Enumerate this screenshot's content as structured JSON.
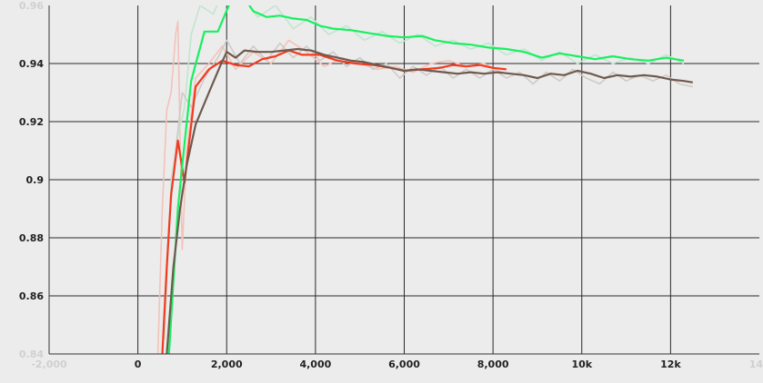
{
  "chart_data": {
    "type": "line",
    "xlim": [
      -2000,
      14000
    ],
    "ylim": [
      0.84,
      0.96
    ],
    "grid": true,
    "x_ticks": [
      {
        "value": -2000,
        "label": "-2,000",
        "faded": true
      },
      {
        "value": 0,
        "label": "0"
      },
      {
        "value": 2000,
        "label": "2,000"
      },
      {
        "value": 4000,
        "label": "4,000"
      },
      {
        "value": 6000,
        "label": "6,000"
      },
      {
        "value": 8000,
        "label": "8,000"
      },
      {
        "value": 10000,
        "label": "10k"
      },
      {
        "value": 12000,
        "label": "12k"
      },
      {
        "value": 14000,
        "label": "14k",
        "faded": true
      }
    ],
    "y_ticks": [
      {
        "value": 0.84,
        "label": "0.84",
        "faded": true
      },
      {
        "value": 0.86,
        "label": "0.86"
      },
      {
        "value": 0.88,
        "label": "0.88"
      },
      {
        "value": 0.9,
        "label": "0.9"
      },
      {
        "value": 0.92,
        "label": "0.92"
      },
      {
        "value": 0.94,
        "label": "0.94"
      },
      {
        "value": 0.96,
        "label": "0.96",
        "faded": true
      }
    ],
    "series": [
      {
        "color": "#f23a1f",
        "raw_color": "#f3c2b9",
        "smoothed": [
          [
            550,
            0.84
          ],
          [
            650,
            0.87
          ],
          [
            750,
            0.895
          ],
          [
            900,
            0.9135
          ],
          [
            1050,
            0.899
          ],
          [
            1300,
            0.932
          ],
          [
            1600,
            0.938
          ],
          [
            1900,
            0.941
          ],
          [
            2200,
            0.9395
          ],
          [
            2500,
            0.939
          ],
          [
            2800,
            0.9415
          ],
          [
            3100,
            0.9425
          ],
          [
            3400,
            0.9445
          ],
          [
            3700,
            0.943
          ],
          [
            4100,
            0.943
          ],
          [
            4500,
            0.941
          ],
          [
            4900,
            0.94
          ],
          [
            5300,
            0.9395
          ],
          [
            5700,
            0.9385
          ],
          [
            6000,
            0.9375
          ],
          [
            6400,
            0.938
          ],
          [
            6800,
            0.9385
          ],
          [
            7100,
            0.9395
          ],
          [
            7400,
            0.939
          ],
          [
            7700,
            0.9395
          ],
          [
            8000,
            0.9385
          ],
          [
            8300,
            0.938
          ]
        ],
        "raw": [
          [
            450,
            0.84
          ],
          [
            550,
            0.89
          ],
          [
            650,
            0.924
          ],
          [
            750,
            0.93
          ],
          [
            850,
            0.95
          ],
          [
            900,
            0.9545
          ],
          [
            1000,
            0.876
          ],
          [
            1100,
            0.91
          ],
          [
            1300,
            0.935
          ],
          [
            1600,
            0.94
          ],
          [
            1900,
            0.946
          ],
          [
            2200,
            0.938
          ],
          [
            2600,
            0.944
          ],
          [
            3000,
            0.94
          ],
          [
            3400,
            0.948
          ],
          [
            3800,
            0.944
          ],
          [
            4200,
            0.939
          ],
          [
            4600,
            0.942
          ],
          [
            5000,
            0.94
          ],
          [
            5400,
            0.938
          ],
          [
            5800,
            0.939
          ],
          [
            6200,
            0.937
          ],
          [
            6600,
            0.94
          ],
          [
            7000,
            0.941
          ],
          [
            7400,
            0.939
          ],
          [
            7800,
            0.94
          ],
          [
            8200,
            0.937
          ]
        ]
      },
      {
        "color": "#17f060",
        "raw_color": "#c2e5cf",
        "smoothed": [
          [
            700,
            0.84
          ],
          [
            800,
            0.865
          ],
          [
            900,
            0.89
          ],
          [
            1000,
            0.905
          ],
          [
            1200,
            0.934
          ],
          [
            1500,
            0.951
          ],
          [
            1800,
            0.951
          ],
          [
            2050,
            0.96
          ],
          [
            2300,
            0.965
          ],
          [
            2600,
            0.958
          ],
          [
            2900,
            0.956
          ],
          [
            3200,
            0.9565
          ],
          [
            3500,
            0.9555
          ],
          [
            3800,
            0.955
          ],
          [
            4100,
            0.953
          ],
          [
            4400,
            0.952
          ],
          [
            4800,
            0.9515
          ],
          [
            5200,
            0.9505
          ],
          [
            5600,
            0.9495
          ],
          [
            6000,
            0.949
          ],
          [
            6400,
            0.9495
          ],
          [
            6700,
            0.948
          ],
          [
            7100,
            0.947
          ],
          [
            7500,
            0.9465
          ],
          [
            7900,
            0.9455
          ],
          [
            8300,
            0.945
          ],
          [
            8700,
            0.944
          ],
          [
            9100,
            0.942
          ],
          [
            9500,
            0.9435
          ],
          [
            9900,
            0.9425
          ],
          [
            10300,
            0.9415
          ],
          [
            10700,
            0.9425
          ],
          [
            11100,
            0.9415
          ],
          [
            11500,
            0.941
          ],
          [
            11900,
            0.942
          ],
          [
            12100,
            0.9415
          ],
          [
            12300,
            0.941
          ]
        ],
        "raw": [
          [
            600,
            0.845
          ],
          [
            750,
            0.9
          ],
          [
            900,
            0.915
          ],
          [
            1050,
            0.925
          ],
          [
            1200,
            0.95
          ],
          [
            1400,
            0.96
          ],
          [
            1700,
            0.957
          ],
          [
            2000,
            0.968
          ],
          [
            2300,
            0.964
          ],
          [
            2700,
            0.956
          ],
          [
            3100,
            0.96
          ],
          [
            3500,
            0.952
          ],
          [
            3900,
            0.956
          ],
          [
            4300,
            0.95
          ],
          [
            4700,
            0.953
          ],
          [
            5100,
            0.948
          ],
          [
            5500,
            0.951
          ],
          [
            5900,
            0.947
          ],
          [
            6300,
            0.95
          ],
          [
            6700,
            0.946
          ],
          [
            7100,
            0.948
          ],
          [
            7500,
            0.945
          ],
          [
            7900,
            0.947
          ],
          [
            8300,
            0.943
          ],
          [
            8700,
            0.945
          ],
          [
            9100,
            0.941
          ],
          [
            9500,
            0.944
          ],
          [
            9900,
            0.94
          ],
          [
            10300,
            0.943
          ],
          [
            10700,
            0.94
          ],
          [
            11100,
            0.942
          ],
          [
            11500,
            0.94
          ],
          [
            11900,
            0.943
          ],
          [
            12300,
            0.94
          ]
        ]
      },
      {
        "color": "#6e5a4e",
        "raw_color": "#cfcac6",
        "smoothed": [
          [
            650,
            0.84
          ],
          [
            800,
            0.87
          ],
          [
            950,
            0.89
          ],
          [
            1100,
            0.905
          ],
          [
            1300,
            0.919
          ],
          [
            1600,
            0.93
          ],
          [
            1850,
            0.939
          ],
          [
            2000,
            0.944
          ],
          [
            2200,
            0.942
          ],
          [
            2400,
            0.9445
          ],
          [
            2700,
            0.944
          ],
          [
            3000,
            0.944
          ],
          [
            3300,
            0.9445
          ],
          [
            3600,
            0.945
          ],
          [
            3900,
            0.9445
          ],
          [
            4200,
            0.943
          ],
          [
            4500,
            0.942
          ],
          [
            4800,
            0.941
          ],
          [
            5100,
            0.9405
          ],
          [
            5400,
            0.9395
          ],
          [
            5700,
            0.9385
          ],
          [
            6000,
            0.9375
          ],
          [
            6300,
            0.938
          ],
          [
            6600,
            0.9375
          ],
          [
            6900,
            0.937
          ],
          [
            7200,
            0.9365
          ],
          [
            7500,
            0.937
          ],
          [
            7800,
            0.9365
          ],
          [
            8100,
            0.937
          ],
          [
            8400,
            0.9365
          ],
          [
            8700,
            0.936
          ],
          [
            9000,
            0.935
          ],
          [
            9300,
            0.9365
          ],
          [
            9600,
            0.936
          ],
          [
            9900,
            0.9375
          ],
          [
            10200,
            0.9365
          ],
          [
            10500,
            0.935
          ],
          [
            10800,
            0.936
          ],
          [
            11100,
            0.9355
          ],
          [
            11400,
            0.936
          ],
          [
            11700,
            0.9355
          ],
          [
            12000,
            0.9345
          ],
          [
            12300,
            0.934
          ],
          [
            12500,
            0.9335
          ]
        ],
        "raw": [
          [
            550,
            0.84
          ],
          [
            700,
            0.885
          ],
          [
            850,
            0.91
          ],
          [
            1000,
            0.93
          ],
          [
            1200,
            0.925
          ],
          [
            1500,
            0.935
          ],
          [
            1800,
            0.942
          ],
          [
            2000,
            0.948
          ],
          [
            2300,
            0.94
          ],
          [
            2600,
            0.946
          ],
          [
            2900,
            0.941
          ],
          [
            3200,
            0.947
          ],
          [
            3500,
            0.942
          ],
          [
            3800,
            0.946
          ],
          [
            4100,
            0.941
          ],
          [
            4400,
            0.944
          ],
          [
            4700,
            0.939
          ],
          [
            5000,
            0.942
          ],
          [
            5300,
            0.938
          ],
          [
            5600,
            0.94
          ],
          [
            5900,
            0.935
          ],
          [
            6200,
            0.939
          ],
          [
            6500,
            0.936
          ],
          [
            6800,
            0.939
          ],
          [
            7100,
            0.935
          ],
          [
            7400,
            0.938
          ],
          [
            7700,
            0.935
          ],
          [
            8000,
            0.938
          ],
          [
            8300,
            0.935
          ],
          [
            8600,
            0.937
          ],
          [
            8900,
            0.933
          ],
          [
            9200,
            0.937
          ],
          [
            9500,
            0.934
          ],
          [
            9800,
            0.938
          ],
          [
            10100,
            0.935
          ],
          [
            10400,
            0.933
          ],
          [
            10700,
            0.937
          ],
          [
            11000,
            0.934
          ],
          [
            11300,
            0.936
          ],
          [
            11600,
            0.934
          ],
          [
            11900,
            0.936
          ],
          [
            12200,
            0.933
          ],
          [
            12500,
            0.932
          ]
        ]
      }
    ]
  }
}
